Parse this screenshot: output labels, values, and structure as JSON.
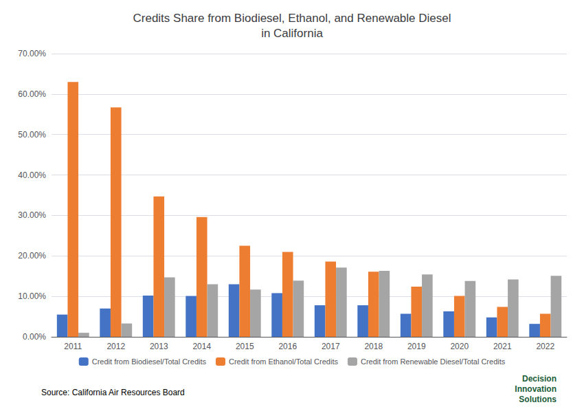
{
  "chart_data": {
    "type": "bar",
    "title": "Credits Share from Biodiesel, Ethanol, and Renewable Diesel\nin California",
    "categories": [
      2011,
      2012,
      2013,
      2014,
      2015,
      2016,
      2017,
      2018,
      2019,
      2020,
      2021,
      2022
    ],
    "series": [
      {
        "name": "Credit from Biodiesel/Total Credits",
        "color": "#4472C4",
        "values": [
          0.055,
          0.07,
          0.102,
          0.101,
          0.13,
          0.108,
          0.078,
          0.078,
          0.057,
          0.063,
          0.048,
          0.032
        ]
      },
      {
        "name": "Credit from Ethanol/Total Credits",
        "color": "#ED7D31",
        "values": [
          0.63,
          0.567,
          0.347,
          0.296,
          0.225,
          0.21,
          0.186,
          0.161,
          0.124,
          0.101,
          0.074,
          0.057
        ]
      },
      {
        "name": "Credit from Renewable Diesel/Total Credits",
        "color": "#A5A5A5",
        "values": [
          0.01,
          0.033,
          0.147,
          0.13,
          0.117,
          0.139,
          0.171,
          0.163,
          0.154,
          0.138,
          0.142,
          0.151
        ]
      }
    ],
    "ylim": [
      0,
      0.7
    ],
    "yticks": [
      {
        "value": 0.0,
        "label": "0.00%"
      },
      {
        "value": 0.1,
        "label": "10.00%"
      },
      {
        "value": 0.2,
        "label": "20.00%"
      },
      {
        "value": 0.3,
        "label": "30.00%"
      },
      {
        "value": 0.4,
        "label": "40.00%"
      },
      {
        "value": 0.5,
        "label": "50.00%"
      },
      {
        "value": 0.6,
        "label": "60.00%"
      },
      {
        "value": 0.7,
        "label": "70.00%"
      }
    ],
    "grid": true,
    "legend": "bottom",
    "annotations": [
      "Source: California Air Resources Board",
      "Decision",
      "Innovation",
      "Solutions"
    ]
  }
}
